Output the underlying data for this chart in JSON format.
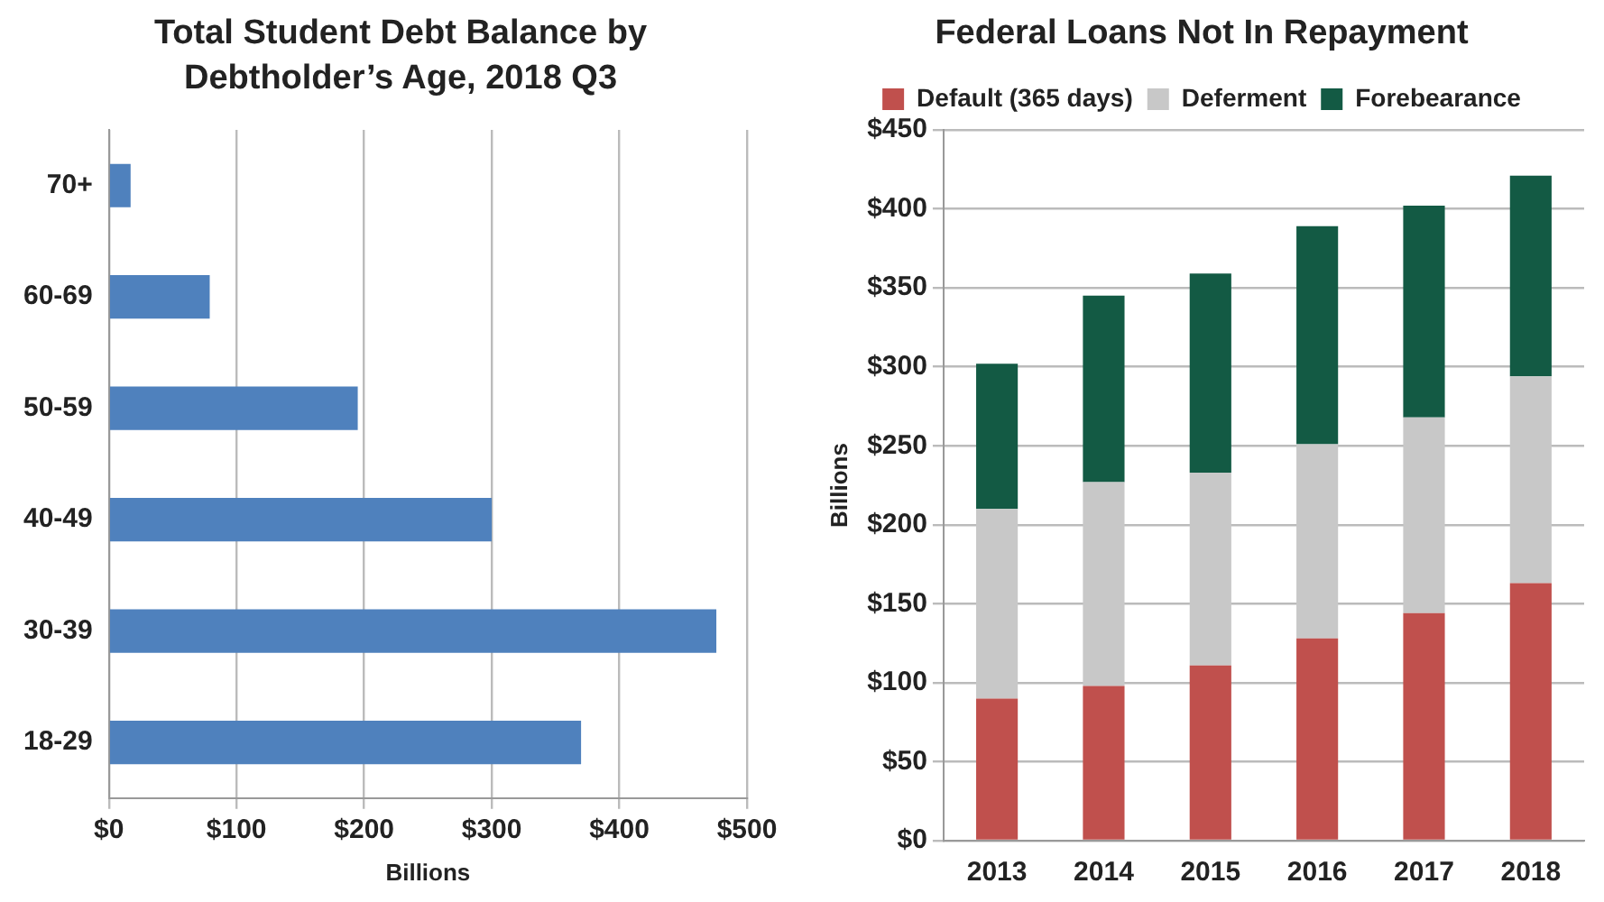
{
  "chart_data": [
    {
      "type": "bar",
      "title": "Total Student Debt Balance by Debtholder’s Age, 2018 Q3",
      "orientation": "horizontal",
      "categories": [
        "70+",
        "60-69",
        "50-59",
        "40-49",
        "30-39",
        "18-29"
      ],
      "values": [
        17,
        79,
        195,
        300,
        476,
        370
      ],
      "color": "#4f81bd",
      "xlabel": "Billions",
      "xlim": [
        0,
        500
      ],
      "xticks": [
        {
          "value": 0,
          "label": "$0"
        },
        {
          "value": 100,
          "label": "$100"
        },
        {
          "value": 200,
          "label": "$200"
        },
        {
          "value": 300,
          "label": "$300"
        },
        {
          "value": 400,
          "label": "$400"
        },
        {
          "value": 500,
          "label": "$500"
        }
      ],
      "grid": "x"
    },
    {
      "type": "bar",
      "title": "Federal Loans Not In Repayment",
      "stacked": true,
      "categories": [
        "2013",
        "2014",
        "2015",
        "2016",
        "2017",
        "2018"
      ],
      "series": [
        {
          "name": "Default (365 days)",
          "color": "#c0504d",
          "values": [
            90,
            98,
            111,
            128,
            144,
            163
          ]
        },
        {
          "name": "Deferment",
          "color": "#c8c8c8",
          "values": [
            120,
            129,
            122,
            123,
            124,
            131
          ]
        },
        {
          "name": "Forebearance",
          "color": "#135a44",
          "values": [
            92,
            118,
            126,
            138,
            134,
            127
          ]
        }
      ],
      "ylabel": "Billions",
      "ylim": [
        0,
        450
      ],
      "yticks": [
        {
          "value": 0,
          "label": "$0"
        },
        {
          "value": 50,
          "label": "$50"
        },
        {
          "value": 100,
          "label": "$100"
        },
        {
          "value": 150,
          "label": "$150"
        },
        {
          "value": 200,
          "label": "$200"
        },
        {
          "value": 250,
          "label": "$250"
        },
        {
          "value": 300,
          "label": "$300"
        },
        {
          "value": 350,
          "label": "$350"
        },
        {
          "value": 400,
          "label": "$400"
        },
        {
          "value": 450,
          "label": "$450"
        }
      ],
      "grid": "y",
      "legend": "top"
    }
  ]
}
